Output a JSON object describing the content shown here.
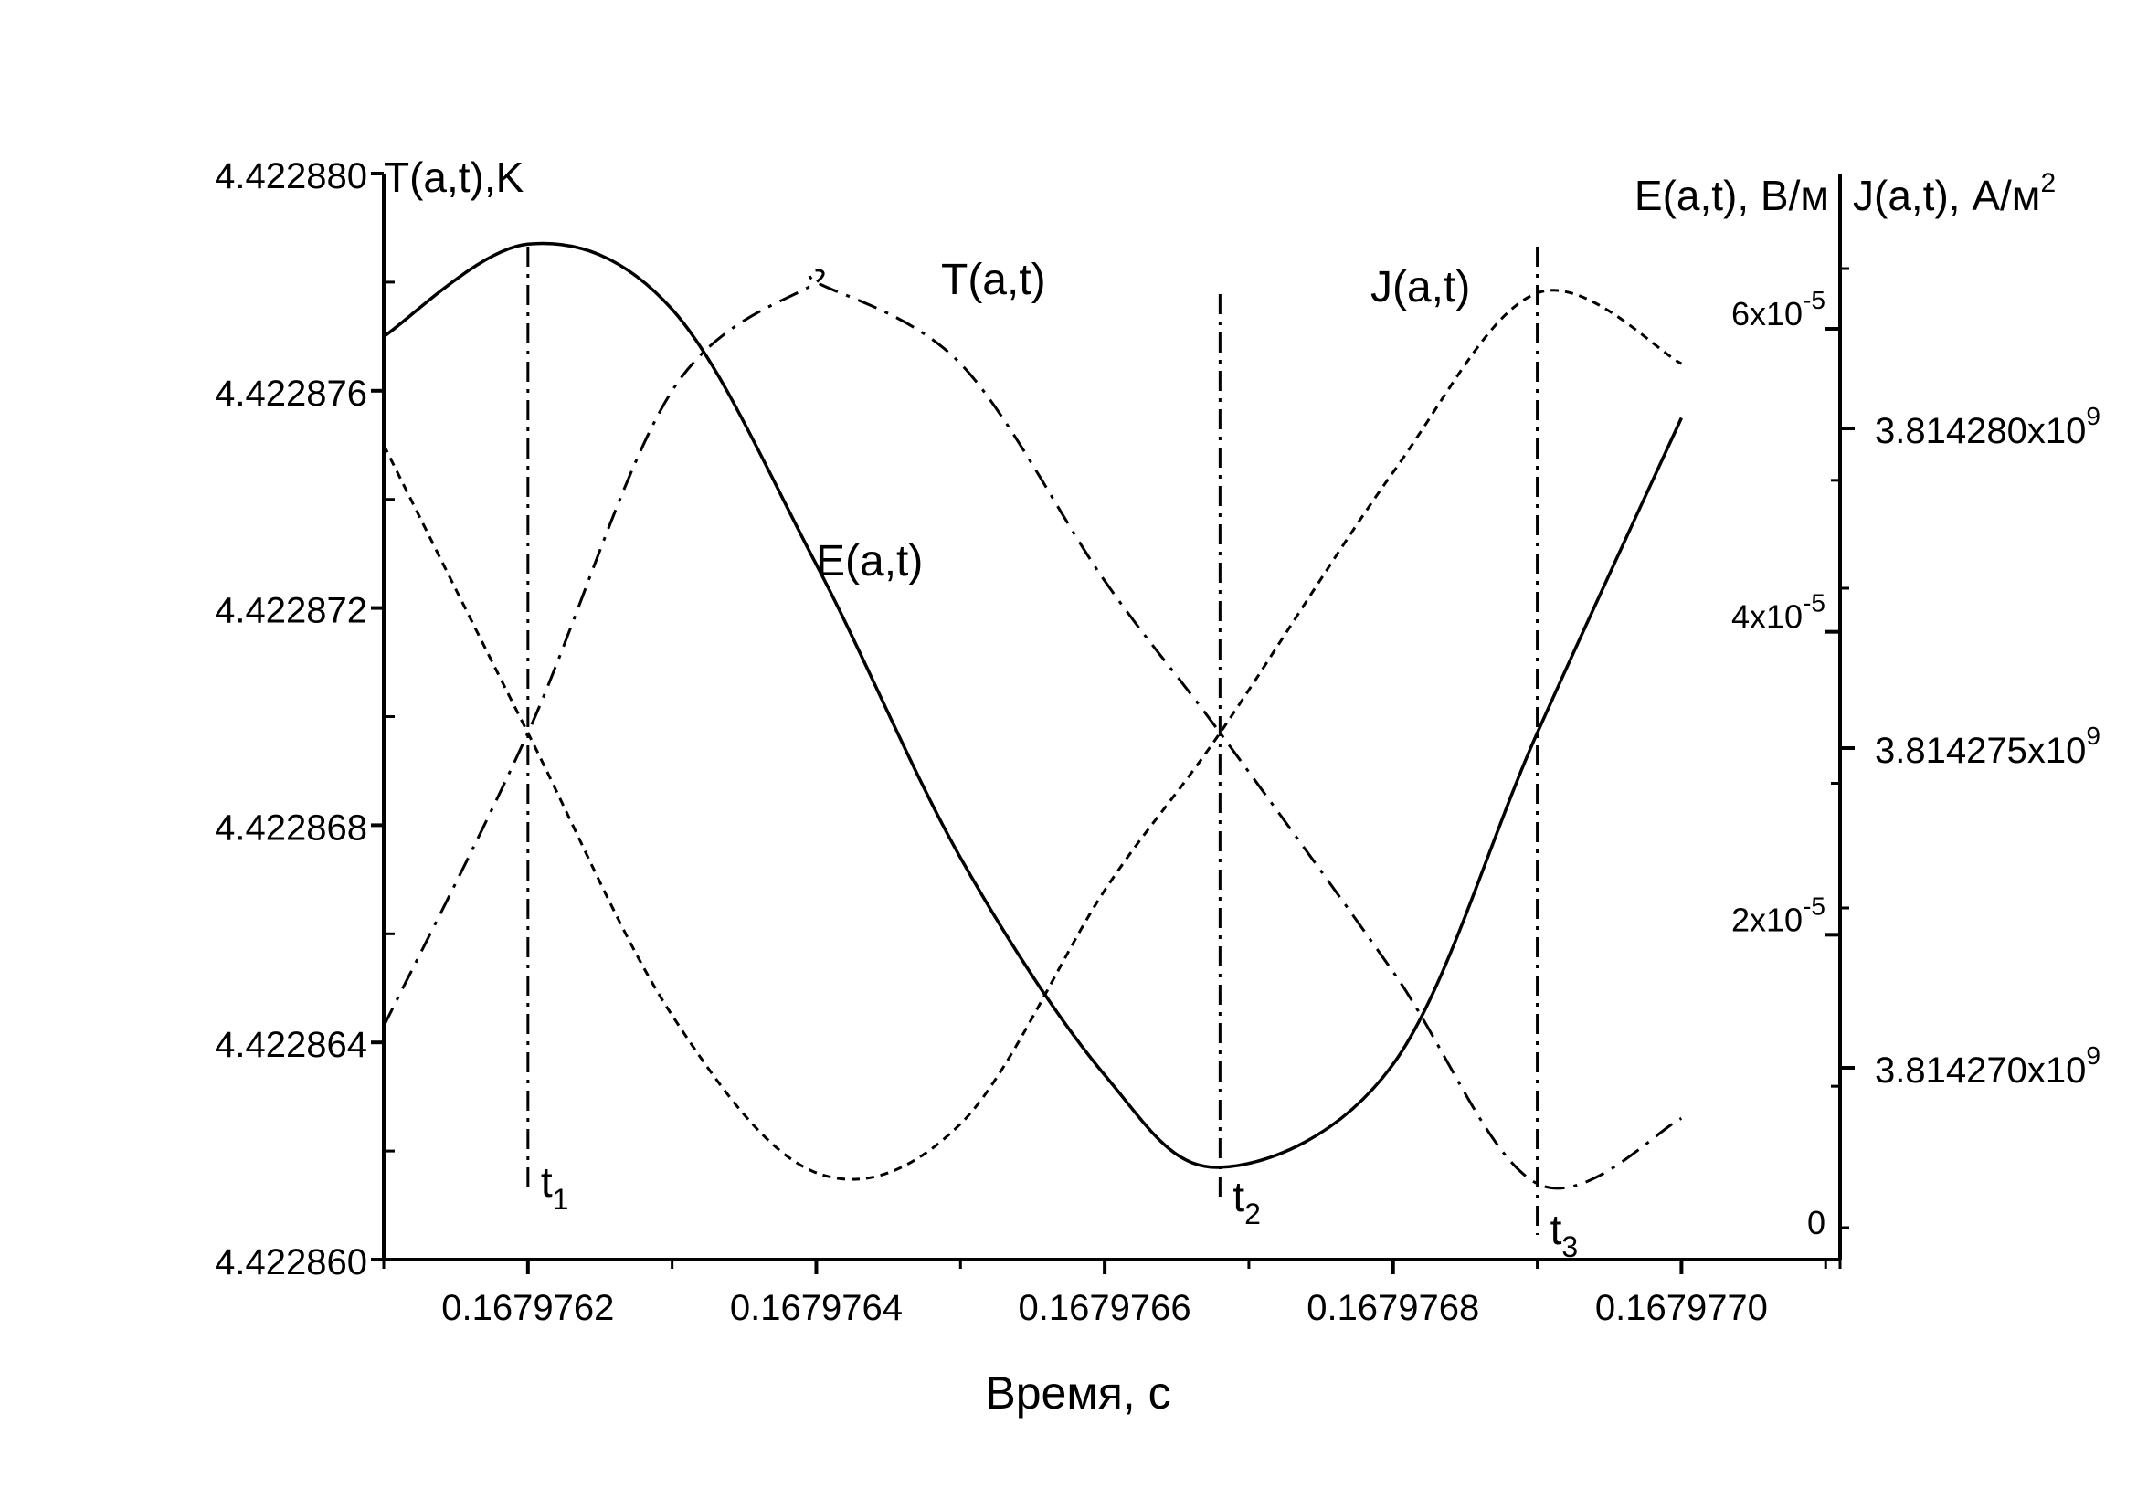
{
  "chart_data": {
    "type": "line",
    "xlabel": "Время, с",
    "x_ticks": [
      "0.1679762",
      "0.1679764",
      "0.1679766",
      "0.1679768",
      "0.1679770"
    ],
    "xlim": [
      0.1679761,
      0.16797711
    ],
    "y_left": {
      "label": "T(a,t),K",
      "ticks": [
        "4.422880",
        "4.422876",
        "4.422872",
        "4.422868",
        "4.422864",
        "4.422860"
      ],
      "ylim": [
        4.42286,
        4.42288
      ]
    },
    "y_right_E": {
      "label": "E(a,t), В/м",
      "ticks": [
        {
          "base": "0",
          "exp": ""
        },
        {
          "base": "2x10",
          "exp": "-5"
        },
        {
          "base": "4x10",
          "exp": "-5"
        },
        {
          "base": "6x10",
          "exp": "-5"
        }
      ],
      "values": [
        0,
        2e-05,
        4e-05,
        6e-05
      ]
    },
    "y_right_J": {
      "label": "J(a,t), А/м",
      "label_exp": "2",
      "ticks": [
        {
          "base": "3.814280x10",
          "exp": "9"
        },
        {
          "base": "3.814275x10",
          "exp": "9"
        },
        {
          "base": "3.814270x10",
          "exp": "9"
        }
      ],
      "values": [
        3814280000,
        3814275000,
        3814270000
      ]
    },
    "series": [
      {
        "name": "E(a,t)",
        "style": "solid",
        "x": [
          0.1679761,
          0.1679762,
          0.1679763,
          0.1679764,
          0.1679765,
          0.1679766,
          0.16797668,
          0.1679768,
          0.1679769,
          0.167977
        ],
        "y": [
          4.422877,
          4.4228787,
          4.4228775,
          4.4228728,
          4.4228674,
          4.4228634,
          4.4228617,
          4.4228636,
          4.4228697,
          4.4228755
        ]
      },
      {
        "name": "T(a,t)",
        "style": "dashdot",
        "x": [
          0.1679761,
          0.1679762,
          0.1679763,
          0.1679764,
          0.1679764,
          0.1679765,
          0.1679766,
          0.16797668,
          0.1679768,
          0.1679769,
          0.167977
        ],
        "y": [
          4.4228643,
          4.4228697,
          4.422876,
          4.422878,
          4.422878,
          4.4228765,
          4.4228725,
          4.4228697,
          4.4228653,
          4.4228614,
          4.4228626
        ]
      },
      {
        "name": "J(a,t)",
        "style": "dotted",
        "x": [
          0.1679761,
          0.1679762,
          0.1679763,
          0.1679764,
          0.1679765,
          0.1679766,
          0.16797668,
          0.1679768,
          0.1679769,
          0.167977
        ],
        "y": [
          4.422875,
          4.4228697,
          4.4228645,
          4.4228616,
          4.4228625,
          4.4228668,
          4.4228697,
          4.4228745,
          4.4228778,
          4.4228765
        ]
      }
    ],
    "markers": [
      {
        "label": "t",
        "sub": "1",
        "x": 0.1679762
      },
      {
        "label": "t",
        "sub": "2",
        "x": 0.16797668
      },
      {
        "label": "t",
        "sub": "3",
        "x": 0.1679769
      }
    ],
    "grid": false,
    "legend": "none"
  }
}
